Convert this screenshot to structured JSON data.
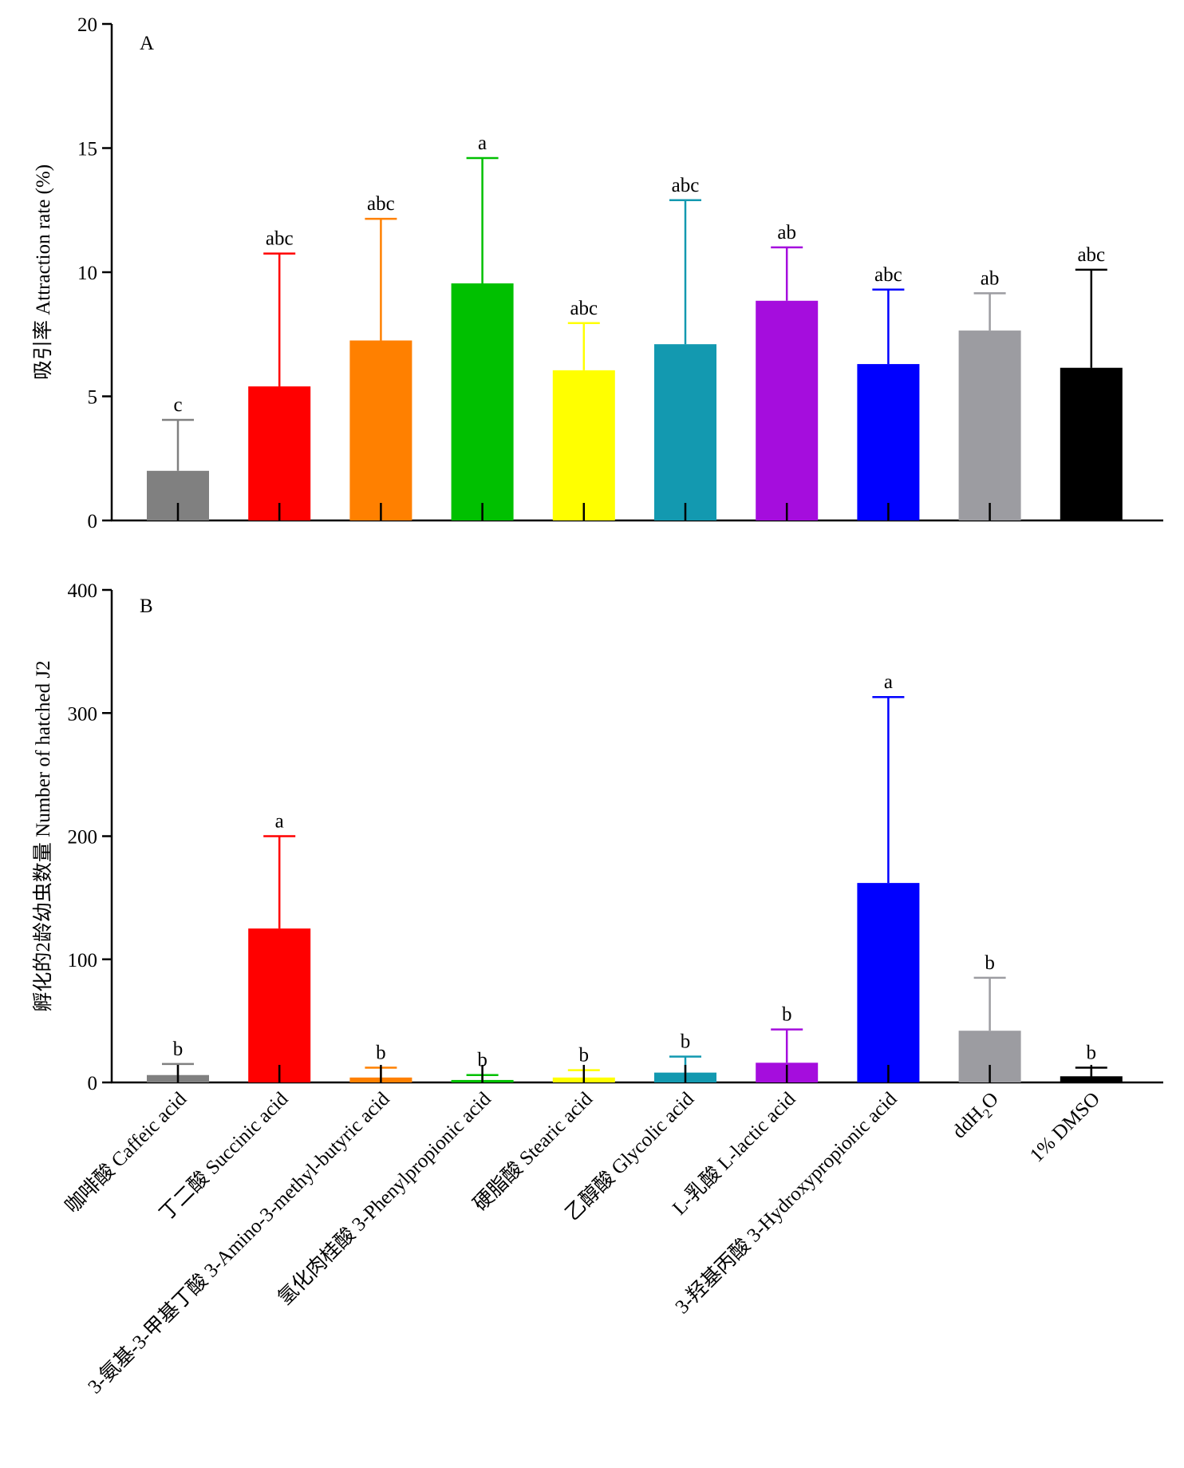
{
  "chart_data": [
    {
      "type": "bar",
      "panel_label": "A",
      "ylabel": "吸引率 Attraction rate (%)",
      "ylim": [
        0,
        20
      ],
      "yticks": [
        "0",
        "5",
        "10",
        "15",
        "20"
      ],
      "categories": [
        "咖啡酸 Caffeic acid",
        "丁二酸 Succinic acid",
        "3-氨基-3-甲基丁酸 3-Amino-3-methyl-butyric acid",
        "氢化肉桂酸 3-Phenylpropionic acid",
        "硬脂酸 Stearic acid",
        "乙醇酸 Glycolic acid",
        "L-乳酸 L-lactic acid",
        "3-羟基丙酸 3-Hydroxypropionic acid",
        "ddH₂O",
        "1% DMSO"
      ],
      "values": [
        2.0,
        5.4,
        7.25,
        9.55,
        6.05,
        7.1,
        8.85,
        6.3,
        7.65,
        6.15
      ],
      "error": [
        2.05,
        5.35,
        4.9,
        5.05,
        1.9,
        5.8,
        2.15,
        3.0,
        1.5,
        3.95
      ],
      "significance": [
        "c",
        "abc",
        "abc",
        "a",
        "abc",
        "abc",
        "ab",
        "abc",
        "ab",
        "abc"
      ],
      "colors": [
        "#808080",
        "#ff0000",
        "#ff8000",
        "#00c000",
        "#ffff00",
        "#1399b0",
        "#a50ddd",
        "#0000ff",
        "#9c9ca1",
        "#000000"
      ]
    },
    {
      "type": "bar",
      "panel_label": "B",
      "ylabel": "孵化的2龄幼虫数量 Number of hatched J2",
      "ylim": [
        0,
        400
      ],
      "yticks": [
        "0",
        "100",
        "200",
        "300",
        "400"
      ],
      "categories": [
        "咖啡酸 Caffeic acid",
        "丁二酸 Succinic acid",
        "3-氨基-3-甲基丁酸 3-Amino-3-methyl-butyric acid",
        "氢化肉桂酸 3-Phenylpropionic acid",
        "硬脂酸 Stearic acid",
        "乙醇酸 Glycolic acid",
        "L-乳酸 L-lactic acid",
        "3-羟基丙酸 3-Hydroxypropionic acid",
        "ddH₂O",
        "1% DMSO"
      ],
      "values": [
        6,
        125,
        4,
        2,
        4,
        8,
        16,
        162,
        42,
        5
      ],
      "error": [
        9,
        75,
        8,
        4,
        6,
        13,
        27,
        151,
        43,
        7
      ],
      "significance": [
        "b",
        "a",
        "b",
        "b",
        "b",
        "b",
        "b",
        "a",
        "b",
        "b"
      ],
      "colors": [
        "#808080",
        "#ff0000",
        "#ff8000",
        "#00c000",
        "#ffff00",
        "#1399b0",
        "#a50ddd",
        "#0000ff",
        "#9c9ca1",
        "#000000"
      ]
    }
  ],
  "x_labels": [
    {
      "text": "咖啡酸 Caffeic acid"
    },
    {
      "text": "丁二酸 Succinic acid"
    },
    {
      "text": "3-氨基-3-甲基丁酸 3-Amino-3-methyl-butyric acid"
    },
    {
      "text": "氢化肉桂酸 3-Phenylpropionic acid"
    },
    {
      "text": "硬脂酸 Stearic acid"
    },
    {
      "text": "乙醇酸 Glycolic acid"
    },
    {
      "text": "L-乳酸 L-lactic acid"
    },
    {
      "text": "3-羟基丙酸 3-Hydroxypropionic acid"
    },
    {
      "text": "ddH",
      "sub": "2",
      "suffix": "O"
    },
    {
      "text": "1% DMSO"
    }
  ]
}
